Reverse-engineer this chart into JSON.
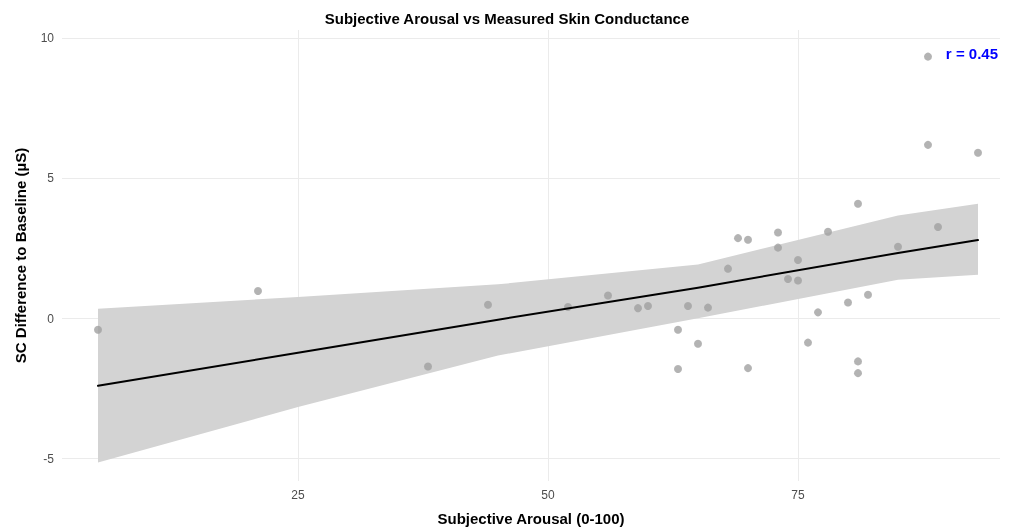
{
  "chart_data": {
    "type": "scatter",
    "title": "Subjective Arousal vs Measured Skin Conductance",
    "xlabel": "Subjective Arousal (0-100)",
    "ylabel": "SC Difference to Baseline (µS)",
    "annotations": [
      "r = 0.45"
    ],
    "xlim": [
      1.4,
      95.2
    ],
    "xticks": [
      25,
      50,
      75
    ],
    "ylim": [
      -5.8,
      10.3
    ],
    "yticks": [
      -5,
      0,
      5,
      10
    ],
    "grid": true,
    "marker": "circle",
    "series": [
      {
        "color": "#a0a0a0",
        "x": [
          5,
          21,
          38,
          44,
          52,
          56,
          59,
          60,
          63,
          63,
          64,
          65,
          66,
          68,
          69,
          70,
          70,
          73,
          73,
          74,
          75,
          75,
          76,
          77,
          78,
          80,
          81,
          81,
          81,
          82,
          85,
          88,
          88,
          89,
          93
        ],
        "values": [
          -0.4,
          0.98,
          -1.71,
          0.49,
          0.41,
          0.82,
          0.37,
          0.45,
          -0.4,
          -1.8,
          0.45,
          -0.9,
          0.39,
          1.78,
          2.87,
          2.81,
          -1.77,
          3.07,
          2.53,
          1.41,
          2.09,
          1.36,
          -0.86,
          0.22,
          3.1,
          0.57,
          4.1,
          -1.53,
          -1.95,
          0.85,
          2.56,
          6.2,
          9.35,
          3.27,
          5.92
        ]
      },
      {
        "type": "line",
        "color": "#000000",
        "marker": "none",
        "x": [
          5,
          25,
          45,
          65,
          85,
          93
        ],
        "values": [
          -2.4,
          -1.22,
          -0.04,
          1.1,
          2.34,
          2.8
        ],
        "lower": [
          -5.14,
          -3.16,
          -1.32,
          0.01,
          1.38,
          1.56
        ],
        "upper": [
          0.35,
          0.77,
          1.22,
          1.93,
          3.68,
          4.1
        ]
      }
    ]
  }
}
